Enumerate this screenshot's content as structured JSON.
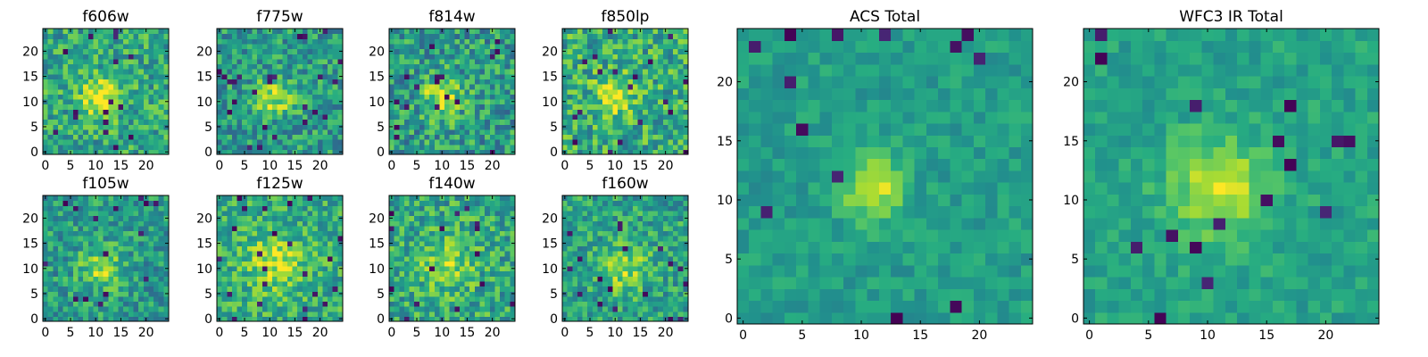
{
  "chart_data": [
    {
      "type": "heatmap",
      "title": "f606w",
      "xticks": [
        "0",
        "5",
        "10",
        "15",
        "20"
      ],
      "yticks": [
        "0",
        "5",
        "10",
        "15",
        "20"
      ],
      "grid": 25,
      "colormap": "viridis",
      "pattern": {
        "cx": 11,
        "cy": 11,
        "sigma": 2.8,
        "amp": 0.38,
        "base": 0.6,
        "noise": 0.22,
        "lowRate": 0.03,
        "seed": 11
      }
    },
    {
      "type": "heatmap",
      "title": "f775w",
      "xticks": [
        "0",
        "5",
        "10",
        "15",
        "20"
      ],
      "yticks": [
        "0",
        "5",
        "10",
        "15",
        "20"
      ],
      "grid": 25,
      "colormap": "viridis",
      "pattern": {
        "cx": 11,
        "cy": 11,
        "sigma": 2.6,
        "amp": 0.36,
        "base": 0.55,
        "noise": 0.22,
        "lowRate": 0.03,
        "seed": 23
      }
    },
    {
      "type": "heatmap",
      "title": "f814w",
      "xticks": [
        "0",
        "5",
        "10",
        "15",
        "20"
      ],
      "yticks": [
        "0",
        "5",
        "10",
        "15",
        "20"
      ],
      "grid": 25,
      "colormap": "viridis",
      "pattern": {
        "cx": 10,
        "cy": 11,
        "sigma": 2.7,
        "amp": 0.38,
        "base": 0.55,
        "noise": 0.24,
        "lowRate": 0.03,
        "seed": 37
      }
    },
    {
      "type": "heatmap",
      "title": "f850lp",
      "xticks": [
        "0",
        "5",
        "10",
        "15",
        "20"
      ],
      "yticks": [
        "0",
        "5",
        "10",
        "15",
        "20"
      ],
      "grid": 25,
      "colormap": "viridis",
      "pattern": {
        "cx": 10,
        "cy": 11,
        "sigma": 2.8,
        "amp": 0.3,
        "base": 0.62,
        "noise": 0.24,
        "lowRate": 0.04,
        "seed": 41
      }
    },
    {
      "type": "heatmap",
      "title": "f105w",
      "xticks": [
        "0",
        "5",
        "10",
        "15",
        "20"
      ],
      "yticks": [
        "0",
        "5",
        "10",
        "15",
        "20"
      ],
      "grid": 25,
      "colormap": "viridis",
      "pattern": {
        "cx": 11,
        "cy": 10,
        "sigma": 3.0,
        "amp": 0.3,
        "base": 0.55,
        "noise": 0.2,
        "lowRate": 0.03,
        "seed": 53
      }
    },
    {
      "type": "heatmap",
      "title": "f125w",
      "xticks": [
        "0",
        "5",
        "10",
        "15",
        "20"
      ],
      "yticks": [
        "0",
        "5",
        "10",
        "15",
        "20"
      ],
      "grid": 25,
      "colormap": "viridis",
      "pattern": {
        "cx": 11,
        "cy": 11,
        "sigma": 4.0,
        "amp": 0.28,
        "base": 0.62,
        "noise": 0.2,
        "lowRate": 0.03,
        "seed": 67
      }
    },
    {
      "type": "heatmap",
      "title": "f140w",
      "xticks": [
        "0",
        "5",
        "10",
        "15",
        "20"
      ],
      "yticks": [
        "0",
        "5",
        "10",
        "15",
        "20"
      ],
      "grid": 25,
      "colormap": "viridis",
      "pattern": {
        "cx": 11,
        "cy": 11,
        "sigma": 3.6,
        "amp": 0.26,
        "base": 0.6,
        "noise": 0.22,
        "lowRate": 0.03,
        "seed": 79
      }
    },
    {
      "type": "heatmap",
      "title": "f160w",
      "xticks": [
        "0",
        "5",
        "10",
        "15",
        "20"
      ],
      "yticks": [
        "0",
        "5",
        "10",
        "15",
        "20"
      ],
      "grid": 25,
      "colormap": "viridis",
      "pattern": {
        "cx": 12,
        "cy": 10,
        "sigma": 3.2,
        "amp": 0.28,
        "base": 0.58,
        "noise": 0.2,
        "lowRate": 0.03,
        "seed": 83
      }
    },
    {
      "type": "heatmap",
      "title": "ACS Total",
      "xticks": [
        "0",
        "5",
        "10",
        "15",
        "20"
      ],
      "yticks": [
        "0",
        "5",
        "10",
        "15",
        "20"
      ],
      "grid": 25,
      "colormap": "viridis",
      "pattern": {
        "cx": 11,
        "cy": 11,
        "sigma": 1.8,
        "amp": 0.38,
        "base": 0.56,
        "noise": 0.1,
        "lowRate": 0.025,
        "seed": 97
      }
    },
    {
      "type": "heatmap",
      "title": "WFC3 IR Total",
      "xticks": [
        "0",
        "5",
        "10",
        "15",
        "20"
      ],
      "yticks": [
        "0",
        "5",
        "10",
        "15",
        "20"
      ],
      "grid": 25,
      "colormap": "viridis",
      "pattern": {
        "cx": 11,
        "cy": 11,
        "sigma": 3.0,
        "amp": 0.34,
        "base": 0.58,
        "noise": 0.1,
        "lowRate": 0.02,
        "seed": 101
      }
    }
  ]
}
